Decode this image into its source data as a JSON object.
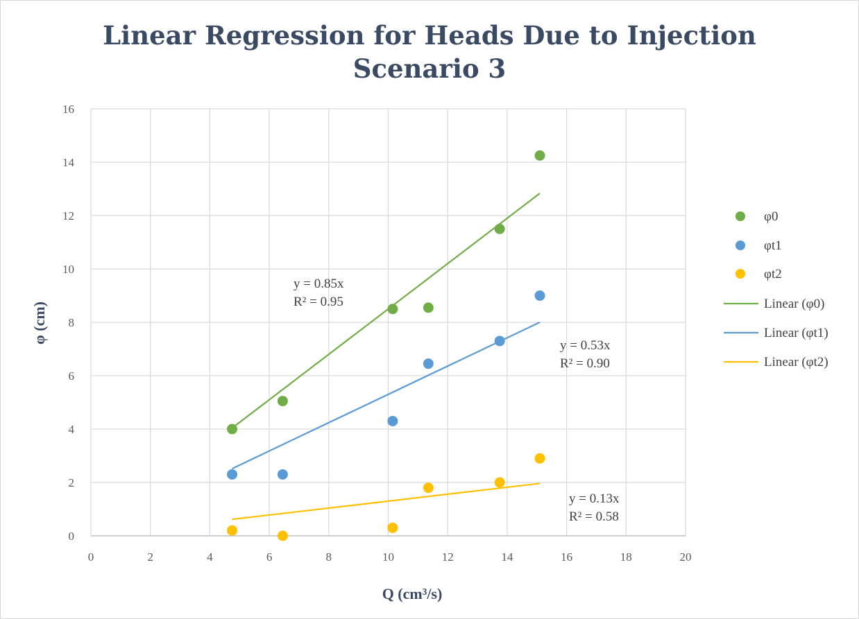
{
  "chart_data": {
    "type": "scatter",
    "title_lines": [
      "Linear Regression for Heads Due to Injection",
      "Scenario 3"
    ],
    "xlabel": "Q  (cm³/s)",
    "ylabel": "φ (cm)",
    "xlim": [
      0,
      20
    ],
    "ylim": [
      0,
      16
    ],
    "x_ticks": [
      "0",
      "2",
      "4",
      "6",
      "8",
      "10",
      "12",
      "14",
      "16",
      "18",
      "20"
    ],
    "y_ticks": [
      "0",
      "2",
      "4",
      "6",
      "8",
      "10",
      "12",
      "14",
      "16"
    ],
    "grid": true,
    "legend_position": "right",
    "series": [
      {
        "name": "φ0",
        "color": "#70ad47",
        "x": [
          4.75,
          6.45,
          10.15,
          11.35,
          13.75,
          15.1
        ],
        "y": [
          4.0,
          5.05,
          8.5,
          8.55,
          11.5,
          14.25
        ]
      },
      {
        "name": "φt1",
        "color": "#5b9bd5",
        "x": [
          4.75,
          6.45,
          10.15,
          11.35,
          13.75,
          15.1
        ],
        "y": [
          2.3,
          2.3,
          4.3,
          6.45,
          7.3,
          9.0
        ]
      },
      {
        "name": "φt2",
        "color": "#ffc000",
        "x": [
          4.75,
          6.45,
          10.15,
          11.35,
          13.75,
          15.1
        ],
        "y": [
          0.2,
          0.0,
          0.3,
          1.8,
          2.0,
          2.9
        ]
      }
    ],
    "trendlines": [
      {
        "name": "Linear  (φ0)",
        "color": "#70ad47",
        "slope": 0.85,
        "x_range": [
          4.75,
          15.1
        ],
        "equation": "y = 0.85x",
        "r2": "R² = 0.95"
      },
      {
        "name": "Linear  (φt1)",
        "color": "#5b9bd5",
        "slope": 0.53,
        "x_range": [
          4.75,
          15.1
        ],
        "equation": "y = 0.53x",
        "r2": "R² = 0.90"
      },
      {
        "name": "Linear  (φt2)",
        "color": "#ffc000",
        "slope": 0.13,
        "x_range": [
          4.75,
          15.1
        ],
        "equation": "y = 0.13x",
        "r2": "R² = 0.58"
      }
    ]
  }
}
